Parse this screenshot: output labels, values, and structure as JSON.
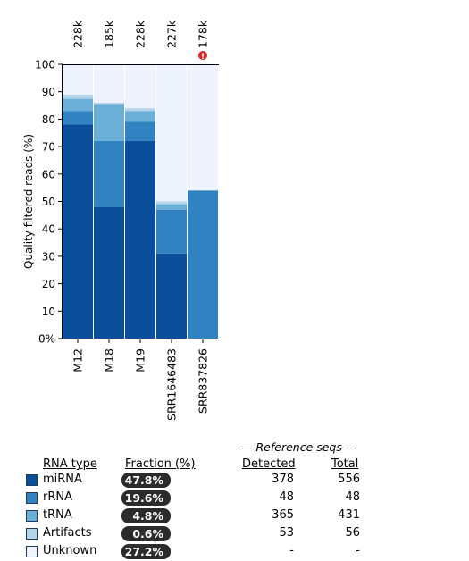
{
  "chart_data": {
    "type": "bar",
    "stacked": true,
    "categories": [
      "M12",
      "M18",
      "M19",
      "SRR1646483",
      "SRR837826"
    ],
    "top_labels": [
      "228k",
      "185k",
      "228k",
      "227k",
      "178k"
    ],
    "warning_samples": [
      "SRR837826"
    ],
    "ylabel": "Quality filtered reads (%)",
    "xlabel": "",
    "ylim": [
      0,
      100
    ],
    "yticks": [
      0,
      10,
      20,
      30,
      40,
      50,
      60,
      70,
      80,
      90,
      100
    ],
    "ytick_labels": [
      "0%",
      "10",
      "20",
      "30",
      "40",
      "50",
      "60",
      "70",
      "80",
      "90",
      "100"
    ],
    "series": [
      {
        "name": "miRNA",
        "color": "#0b4f9a",
        "values": [
          78,
          48,
          72,
          31,
          0
        ]
      },
      {
        "name": "rRNA",
        "color": "#3182c0",
        "values": [
          5,
          24,
          7,
          16,
          54
        ]
      },
      {
        "name": "tRNA",
        "color": "#6baed6",
        "values": [
          4.5,
          13.5,
          4,
          2,
          0
        ]
      },
      {
        "name": "Artifacts",
        "color": "#b3d4ea",
        "values": [
          1.5,
          0.5,
          1,
          1,
          0
        ]
      },
      {
        "name": "Unknown",
        "color": "#eef3fd",
        "values": [
          11,
          14,
          16,
          50,
          46
        ]
      }
    ]
  },
  "legend": {
    "reference_header": "— Reference seqs —",
    "col_type": "RNA type",
    "col_fraction": "Fraction (%)",
    "col_detected": "Detected",
    "col_total": "Total",
    "rows": [
      {
        "label": "miRNA",
        "fraction": "47.8%",
        "detected": "378",
        "total": "556",
        "color": "#0b4f9a"
      },
      {
        "label": "rRNA",
        "fraction": "19.6%",
        "detected": "48",
        "total": "48",
        "color": "#3182c0"
      },
      {
        "label": "tRNA",
        "fraction": "4.8%",
        "detected": "365",
        "total": "431",
        "color": "#6baed6"
      },
      {
        "label": "Artifacts",
        "fraction": "0.6%",
        "detected": "53",
        "total": "56",
        "color": "#b3d4ea"
      },
      {
        "label": "Unknown",
        "fraction": "27.2%",
        "detected": "-",
        "total": "-",
        "color": "#eef3fd"
      }
    ]
  }
}
